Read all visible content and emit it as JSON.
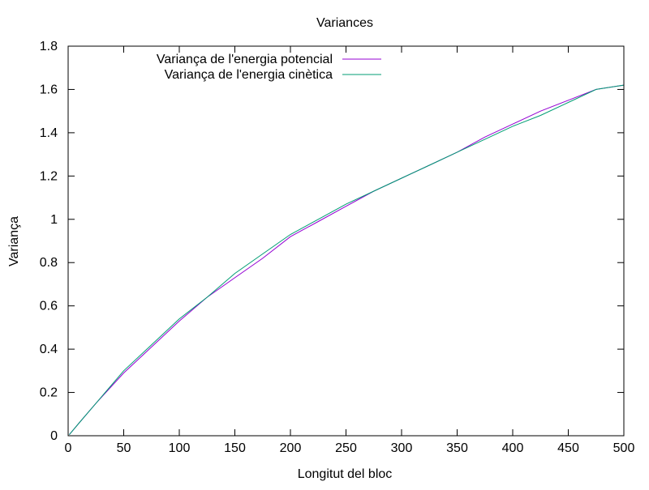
{
  "chart_data": {
    "type": "line",
    "title": "Variances",
    "xlabel": "Longitut del bloc",
    "ylabel": "Variança",
    "xlim": [
      0,
      500
    ],
    "ylim": [
      0,
      1.8
    ],
    "x_ticks": [
      0,
      50,
      100,
      150,
      200,
      250,
      300,
      350,
      400,
      450,
      500
    ],
    "y_ticks": [
      0,
      0.2,
      0.4,
      0.6,
      0.8,
      1,
      1.2,
      1.4,
      1.6,
      1.8
    ],
    "x_tick_labels": [
      "0",
      "50",
      "100",
      "150",
      "200",
      "250",
      "300",
      "350",
      "400",
      "450",
      "500"
    ],
    "y_tick_labels": [
      "0",
      "0.2",
      "0.4",
      "0.6",
      "0.8",
      "1",
      "1.2",
      "1.4",
      "1.6",
      "1.8"
    ],
    "grid": false,
    "legend_position": "top-left",
    "series": [
      {
        "name": "Variança de l'energia potencial",
        "color": "#9400d3",
        "x": [
          1,
          10,
          25,
          50,
          75,
          100,
          125,
          150,
          175,
          200,
          225,
          250,
          275,
          300,
          325,
          350,
          375,
          400,
          425,
          450,
          475,
          500
        ],
        "y": [
          0.005,
          0.06,
          0.15,
          0.29,
          0.41,
          0.53,
          0.64,
          0.73,
          0.82,
          0.92,
          0.99,
          1.06,
          1.13,
          1.19,
          1.25,
          1.31,
          1.38,
          1.44,
          1.5,
          1.55,
          1.6,
          1.62
        ]
      },
      {
        "name": "Variança de l'energia cinètica",
        "color": "#009e73",
        "x": [
          1,
          10,
          25,
          50,
          75,
          100,
          125,
          150,
          175,
          200,
          225,
          250,
          275,
          300,
          325,
          350,
          375,
          400,
          425,
          450,
          475,
          500
        ],
        "y": [
          0.005,
          0.06,
          0.15,
          0.3,
          0.42,
          0.54,
          0.64,
          0.75,
          0.84,
          0.93,
          1.0,
          1.07,
          1.13,
          1.19,
          1.25,
          1.31,
          1.37,
          1.43,
          1.48,
          1.54,
          1.6,
          1.62
        ]
      }
    ]
  }
}
